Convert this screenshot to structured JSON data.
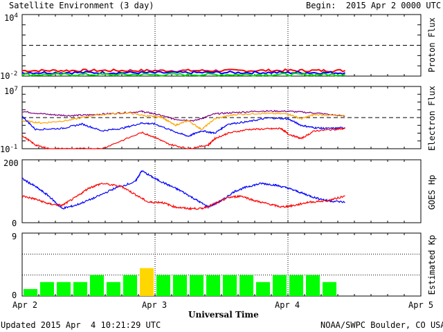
{
  "header": {
    "title": "Satellite Environment (3 day)",
    "begin": "Begin:  2015 Apr 2 0000 UTC"
  },
  "footer": {
    "updated": "Updated 2015 Apr  4 10:21:29 UTC",
    "credit": "NOAA/SWPC Boulder, CO USA"
  },
  "chart_data": [
    {
      "type": "line",
      "ylabel": "Proton Flux",
      "yscale": "log",
      "ylim": [
        0.01,
        10000
      ],
      "tick_labels": {
        "top": "10",
        "top_exp": "4",
        "bottom": "10",
        "bottom_exp": "-2"
      },
      "threshold": 10,
      "x_range_days": [
        0,
        3
      ],
      "data_end_day": 2.43,
      "series": [
        {
          "color": "#ff0000",
          "values": [
            [
              0,
              0.034
            ],
            [
              0.5,
              0.035
            ],
            [
              1.0,
              0.034
            ],
            [
              1.5,
              0.034
            ],
            [
              2.0,
              0.035
            ],
            [
              2.43,
              0.034
            ]
          ]
        },
        {
          "color": "#0000ff",
          "values": [
            [
              0,
              0.022
            ],
            [
              0.5,
              0.022
            ],
            [
              1.0,
              0.021
            ],
            [
              1.5,
              0.022
            ],
            [
              2.0,
              0.022
            ],
            [
              2.43,
              0.021
            ]
          ]
        },
        {
          "color": "#00e000",
          "values": [
            [
              0,
              0.014
            ],
            [
              0.5,
              0.014
            ],
            [
              1.0,
              0.014
            ],
            [
              1.5,
              0.014
            ],
            [
              2.0,
              0.014
            ],
            [
              2.43,
              0.014
            ]
          ]
        }
      ]
    },
    {
      "type": "line",
      "ylabel": "Electron Flux",
      "yscale": "log",
      "ylim": [
        0.1,
        10000000
      ],
      "tick_labels": {
        "top": "10",
        "top_exp": "7",
        "bottom": "10",
        "bottom_exp": "-1"
      },
      "threshold": 1000,
      "x_range_days": [
        0,
        3
      ],
      "series": [
        {
          "color": "#800080",
          "values": [
            [
              0,
              6000
            ],
            [
              0.2,
              2500
            ],
            [
              0.35,
              1800
            ],
            [
              0.5,
              2200
            ],
            [
              0.7,
              3500
            ],
            [
              0.9,
              6000
            ],
            [
              1.0,
              3000
            ],
            [
              1.15,
              600
            ],
            [
              1.3,
              400
            ],
            [
              1.45,
              3000
            ],
            [
              1.6,
              4500
            ],
            [
              1.8,
              7000
            ],
            [
              2.0,
              6500
            ],
            [
              2.2,
              4000
            ],
            [
              2.43,
              1500
            ]
          ]
        },
        {
          "color": "#ffa500",
          "values": [
            [
              0,
              400
            ],
            [
              0.15,
              200
            ],
            [
              0.35,
              450
            ],
            [
              0.55,
              2200
            ],
            [
              0.8,
              4000
            ],
            [
              0.95,
              1500
            ],
            [
              1.05,
              1200
            ],
            [
              1.15,
              100
            ],
            [
              1.25,
              400
            ],
            [
              1.35,
              30
            ],
            [
              1.45,
              700
            ],
            [
              1.6,
              2500
            ],
            [
              1.8,
              3500
            ],
            [
              2.0,
              3000
            ],
            [
              2.1,
              700
            ],
            [
              2.2,
              2500
            ],
            [
              2.43,
              1500
            ]
          ]
        },
        {
          "color": "#0000ff",
          "values": [
            [
              0,
              1500
            ],
            [
              0.1,
              30
            ],
            [
              0.3,
              40
            ],
            [
              0.45,
              150
            ],
            [
              0.6,
              20
            ],
            [
              0.75,
              40
            ],
            [
              0.9,
              200
            ],
            [
              1.0,
              150
            ],
            [
              1.15,
              15
            ],
            [
              1.25,
              4
            ],
            [
              1.35,
              20
            ],
            [
              1.45,
              10
            ],
            [
              1.55,
              150
            ],
            [
              1.7,
              300
            ],
            [
              1.85,
              900
            ],
            [
              2.0,
              700
            ],
            [
              2.1,
              100
            ],
            [
              2.2,
              50
            ],
            [
              2.3,
              40
            ],
            [
              2.43,
              50
            ]
          ]
        },
        {
          "color": "#ff0000",
          "values": [
            [
              0,
              5
            ],
            [
              0.1,
              0.3
            ],
            [
              0.2,
              0.1
            ],
            [
              0.4,
              0.1
            ],
            [
              0.6,
              0.1
            ],
            [
              0.9,
              12
            ],
            [
              1.0,
              3
            ],
            [
              1.1,
              0.4
            ],
            [
              1.25,
              0.1
            ],
            [
              1.4,
              0.3
            ],
            [
              1.45,
              2
            ],
            [
              1.55,
              10
            ],
            [
              1.7,
              30
            ],
            [
              1.85,
              35
            ],
            [
              1.95,
              40
            ],
            [
              2.0,
              8
            ],
            [
              2.1,
              2
            ],
            [
              2.2,
              20
            ],
            [
              2.35,
              30
            ],
            [
              2.43,
              40
            ]
          ]
        }
      ]
    },
    {
      "type": "line",
      "ylabel": "GOES Hp",
      "ylim": [
        0,
        200
      ],
      "x_range_days": [
        0,
        3
      ],
      "series": [
        {
          "color": "#0000ff",
          "values": [
            [
              0,
              140
            ],
            [
              0.1,
              115
            ],
            [
              0.2,
              85
            ],
            [
              0.3,
              45
            ],
            [
              0.4,
              55
            ],
            [
              0.55,
              80
            ],
            [
              0.7,
              110
            ],
            [
              0.85,
              130
            ],
            [
              0.9,
              165
            ],
            [
              1.0,
              140
            ],
            [
              1.1,
              120
            ],
            [
              1.2,
              100
            ],
            [
              1.3,
              75
            ],
            [
              1.4,
              50
            ],
            [
              1.5,
              70
            ],
            [
              1.6,
              100
            ],
            [
              1.7,
              115
            ],
            [
              1.8,
              125
            ],
            [
              1.9,
              120
            ],
            [
              2.0,
              110
            ],
            [
              2.1,
              95
            ],
            [
              2.2,
              80
            ],
            [
              2.3,
              70
            ],
            [
              2.43,
              65
            ]
          ]
        },
        {
          "color": "#ff0000",
          "values": [
            [
              0,
              85
            ],
            [
              0.1,
              75
            ],
            [
              0.2,
              60
            ],
            [
              0.3,
              55
            ],
            [
              0.4,
              80
            ],
            [
              0.5,
              110
            ],
            [
              0.6,
              125
            ],
            [
              0.75,
              115
            ],
            [
              0.85,
              90
            ],
            [
              0.95,
              65
            ],
            [
              1.05,
              65
            ],
            [
              1.15,
              50
            ],
            [
              1.25,
              45
            ],
            [
              1.35,
              45
            ],
            [
              1.45,
              60
            ],
            [
              1.55,
              80
            ],
            [
              1.65,
              85
            ],
            [
              1.75,
              70
            ],
            [
              1.85,
              60
            ],
            [
              1.95,
              50
            ],
            [
              2.05,
              55
            ],
            [
              2.15,
              65
            ],
            [
              2.3,
              70
            ],
            [
              2.43,
              85
            ]
          ]
        }
      ]
    },
    {
      "type": "bar",
      "ylabel": "Estimated Kp",
      "ylim": [
        0,
        9
      ],
      "tick_labels": [
        "9",
        "0"
      ],
      "bar_width_hours": 3,
      "values": [
        1,
        2,
        2,
        2,
        3,
        2,
        3,
        4,
        3,
        3,
        3,
        3,
        3,
        3,
        2,
        3,
        3,
        3,
        2
      ],
      "colors": {
        "normal": "#00ff00",
        "elevated": "#ffd700"
      },
      "elevated_threshold": 4
    }
  ],
  "xaxis": {
    "label": "Universal Time",
    "ticks": [
      "Apr 2",
      "Apr 3",
      "Apr 4",
      "Apr 5"
    ]
  },
  "panel_labels": {
    "proton": "Proton Flux",
    "electron": "Electron Flux",
    "goes": "GOES Hp",
    "kp": "Estimated Kp",
    "goes_top": "200",
    "goes_bottom": "0"
  }
}
